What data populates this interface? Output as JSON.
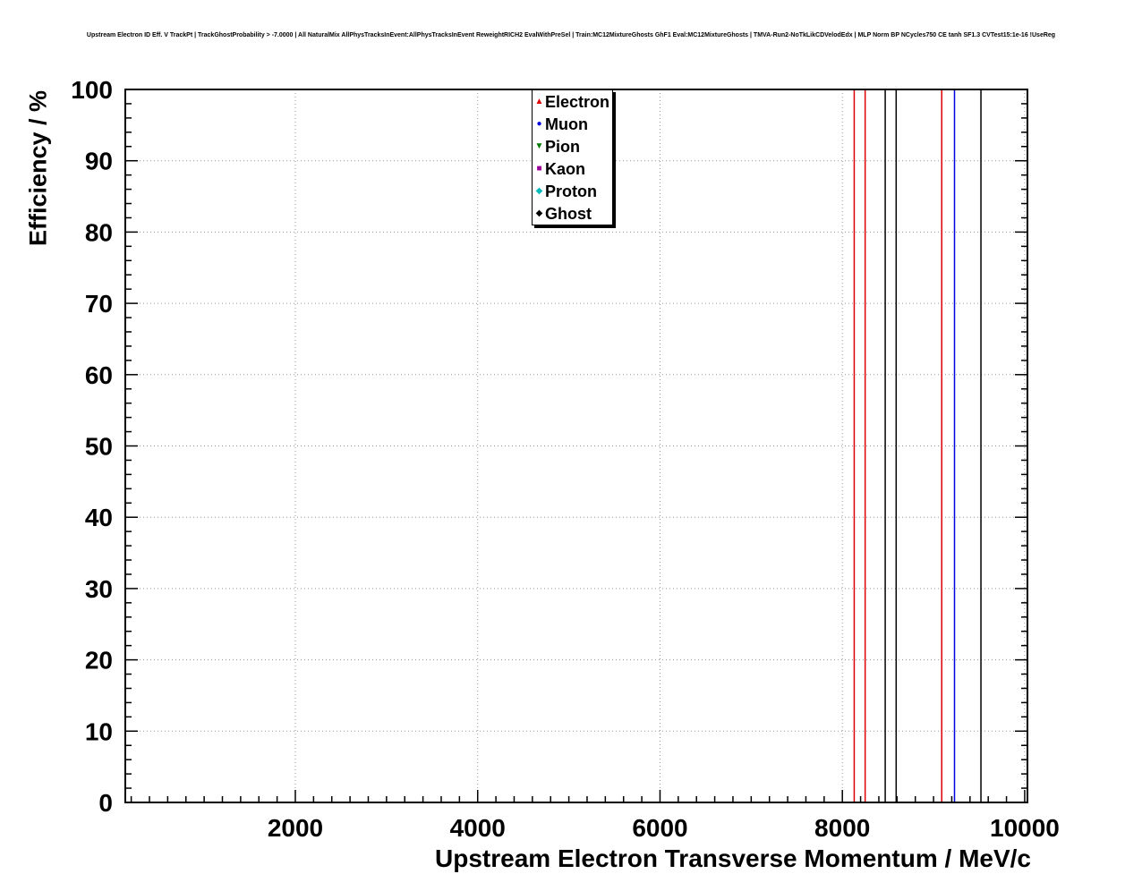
{
  "chart_data": {
    "type": "scatter",
    "title": "Upstream Electron ID Eff. V TrackPt | TrackGhostProbability > -7.0000 | All NaturalMix AllPhysTracksInEvent:AllPhysTracksInEvent ReweightRICH2 EvalWithPreSel | Train:MC12MixtureGhosts GhF1 Eval:MC12MixtureGhosts | TMVA-Run2-NoTkLikCDVelodEdx | MLP Norm BP NCycles750 CE tanh SF1.3 CVTest15:1e-16 !UseReg",
    "xlabel": "Upstream Electron Transverse Momentum / MeV/c",
    "ylabel": "Efficiency / %",
    "xlim": [
      135,
      10030
    ],
    "ylim": [
      0,
      100
    ],
    "x_major_ticks": [
      2000,
      4000,
      6000,
      8000,
      10000
    ],
    "y_major_ticks": [
      0,
      10,
      20,
      30,
      40,
      50,
      60,
      70,
      80,
      90,
      100
    ],
    "x_major_step": 2000,
    "x_minor_step": 200,
    "y_major_step": 10,
    "y_minor_step": 2,
    "grid": true,
    "grid_color": "#999999",
    "frame_color": "#000000",
    "legend": {
      "position": "top-center",
      "entries": [
        {
          "label": "Electron",
          "marker": "triangle-up",
          "color": "#dd0000"
        },
        {
          "label": "Muon",
          "marker": "circle",
          "color": "#0000dd"
        },
        {
          "label": "Pion",
          "marker": "triangle-down",
          "color": "#007700"
        },
        {
          "label": "Kaon",
          "marker": "square",
          "color": "#990099"
        },
        {
          "label": "Proton",
          "marker": "diamond",
          "color": "#00bbbb"
        },
        {
          "label": "Ghost",
          "marker": "diamond",
          "color": "#000000"
        }
      ]
    },
    "vertical_lines": [
      {
        "x": 8130,
        "color": "#dd0000",
        "series": "Electron"
      },
      {
        "x": 8250,
        "color": "#dd0000",
        "series": "Electron"
      },
      {
        "x": 8470,
        "color": "#000000",
        "series": "Ghost"
      },
      {
        "x": 8590,
        "color": "#000000",
        "series": "Ghost"
      },
      {
        "x": 9090,
        "color": "#dd0000",
        "series": "Electron"
      },
      {
        "x": 9230,
        "color": "#0000dd",
        "series": "Muon"
      },
      {
        "x": 9520,
        "color": "#000000",
        "series": "Ghost"
      }
    ]
  }
}
